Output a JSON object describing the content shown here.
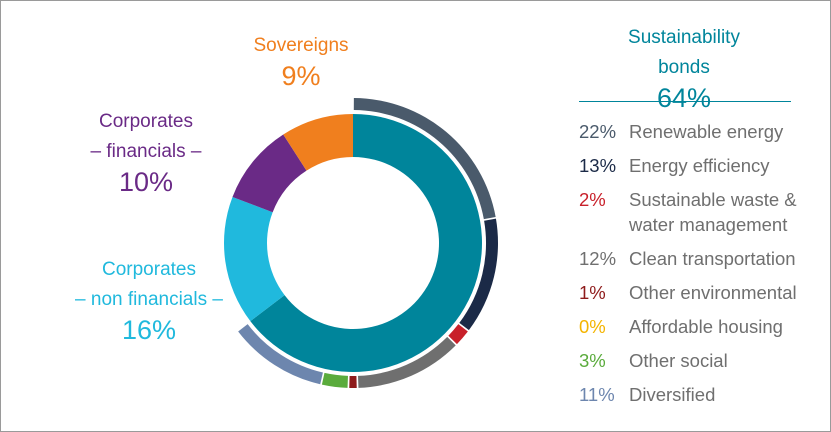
{
  "chart_data": {
    "type": "donut",
    "categories": [
      "Sustainability bonds",
      "Corporates\n– non financials –",
      "Corporates\n– financials –",
      "Sovereigns"
    ],
    "values": [
      64,
      16,
      10,
      9
    ],
    "value_labels": [
      "64%",
      "16%",
      "10%",
      "9%"
    ],
    "colors": [
      "#00859b",
      "#20b9dd",
      "#6a2a86",
      "#f07f1e"
    ],
    "breakdown": {
      "categories": [
        "Renewable energy",
        "Energy efficiency",
        "Sustainable waste &\nwater management",
        "Clean transportation",
        "Other environmental",
        "Affordable housing",
        "Other social",
        "Diversified"
      ],
      "values": [
        22,
        13,
        2,
        12,
        1,
        0,
        3,
        11
      ],
      "value_labels": [
        "22%",
        "13%",
        "2%",
        "12%",
        "1%",
        "0%",
        "3%",
        "11%"
      ],
      "colors": [
        "#4a5a6b",
        "#1b2a47",
        "#c8202a",
        "#6f6f6f",
        "#8e1b1b",
        "#f4b400",
        "#5aab3c",
        "#6d86ae"
      ]
    }
  }
}
